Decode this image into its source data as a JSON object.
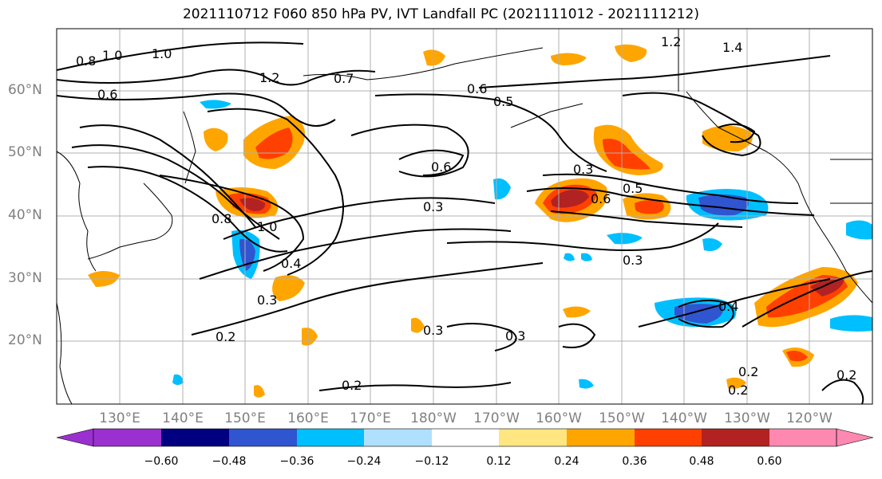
{
  "title": "2021110712 F060 850 hPa PV, IVT Landfall PC (2021111012 - 2021111212)",
  "lat_labels": [
    "60°N",
    "50°N",
    "40°N",
    "30°N",
    "20°N"
  ],
  "lon_labels": [
    "130°E",
    "140°E",
    "150°E",
    "160°E",
    "170°E",
    "180°W",
    "170°W",
    "160°W",
    "150°W",
    "140°W",
    "130°W",
    "120°W"
  ],
  "colorbar": {
    "ticks": [
      "−0.60",
      "−0.48",
      "−0.36",
      "−0.24",
      "−0.12",
      "0.12",
      "0.24",
      "0.36",
      "0.48",
      "0.60"
    ],
    "colors": [
      "#9b30d0",
      "#000080",
      "#3055d0",
      "#00bfff",
      "#b0e0ff",
      "#ffffff",
      "#ffe680",
      "#ffa500",
      "#ff4000",
      "#b22222",
      "#ff88b0"
    ]
  },
  "contour_labels": [
    "1.0",
    "0.8",
    "1.0",
    "1.2",
    "0.6",
    "1.2",
    "1.4",
    "0.6",
    "0.5",
    "0.7",
    "0.3",
    "0.5",
    "0.6",
    "0.3",
    "0.8",
    "1.0",
    "0.4",
    "0.3",
    "0.3",
    "0.3",
    "0.2",
    "0.2",
    "0.2",
    "0.4",
    "0.2",
    "0.3",
    "0.2",
    "0.6"
  ]
}
